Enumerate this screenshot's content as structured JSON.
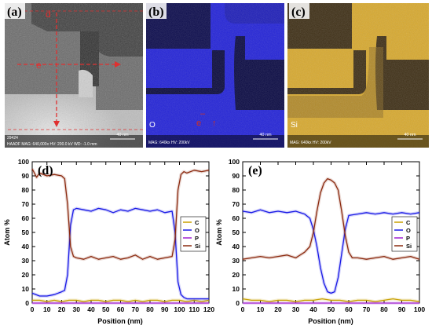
{
  "panels": {
    "a": {
      "label": "(a)",
      "caption": "HAADF  MAG: 640,000x  HV: 200.0 kV  WD: -1.0 mm",
      "id_text": "29424",
      "scale_label": "40 nm",
      "line_d_label": "d",
      "line_e_label": "e"
    },
    "b": {
      "label": "(b)",
      "element": "O",
      "caption": "MAG: 640kx  HV: 200kV",
      "scale_label": "40 nm",
      "color": "#1a1ae6"
    },
    "c": {
      "label": "(c)",
      "element": "Si",
      "caption": "MAG: 640kx  HV: 200kV",
      "scale_label": "40 nm",
      "color": "#d4a528"
    }
  },
  "chart_data": [
    {
      "type": "line",
      "panel_label": "(d)",
      "xlabel": "Position (nm)",
      "ylabel": "Atom %",
      "xlim": [
        0,
        120
      ],
      "ylim": [
        0,
        100
      ],
      "xticks": [
        0,
        10,
        20,
        30,
        40,
        50,
        60,
        70,
        80,
        90,
        100,
        110,
        120
      ],
      "yticks": [
        0,
        10,
        20,
        30,
        40,
        50,
        60,
        70,
        80,
        90,
        100
      ],
      "legend_position": "right",
      "series": [
        {
          "name": "C",
          "color": "#c8a000",
          "x": [
            0,
            5,
            10,
            15,
            20,
            25,
            30,
            35,
            40,
            45,
            50,
            55,
            60,
            65,
            70,
            75,
            80,
            85,
            90,
            95,
            100,
            105,
            110,
            115,
            120
          ],
          "y": [
            2,
            2,
            1,
            2,
            1,
            2,
            2,
            1,
            2,
            2,
            1,
            2,
            2,
            1,
            2,
            1,
            2,
            2,
            1,
            2,
            2,
            1,
            2,
            1,
            2
          ]
        },
        {
          "name": "O",
          "color": "#1a1ae6",
          "x": [
            0,
            5,
            10,
            15,
            20,
            22,
            24,
            26,
            28,
            30,
            35,
            40,
            45,
            50,
            55,
            60,
            65,
            70,
            75,
            80,
            85,
            90,
            95,
            97,
            99,
            101,
            103,
            105,
            110,
            115,
            120
          ],
          "y": [
            7,
            5,
            5,
            6,
            8,
            9,
            20,
            55,
            66,
            67,
            66,
            65,
            67,
            66,
            64,
            66,
            65,
            67,
            66,
            65,
            66,
            64,
            65,
            50,
            15,
            6,
            4,
            3,
            3,
            3,
            3
          ]
        },
        {
          "name": "P",
          "color": "#a020d0",
          "x": [
            0,
            10,
            20,
            30,
            40,
            50,
            60,
            70,
            80,
            90,
            100,
            110,
            120
          ],
          "y": [
            0,
            0,
            0,
            0,
            0,
            0,
            0,
            0,
            0,
            0,
            0,
            0,
            0
          ]
        },
        {
          "name": "Si",
          "color": "#8b2a10",
          "x": [
            0,
            3,
            5,
            10,
            15,
            20,
            22,
            24,
            26,
            28,
            30,
            35,
            40,
            45,
            50,
            55,
            60,
            65,
            70,
            75,
            80,
            85,
            90,
            95,
            97,
            99,
            101,
            103,
            105,
            110,
            115,
            120
          ],
          "y": [
            95,
            89,
            92,
            90,
            91,
            90,
            88,
            70,
            40,
            33,
            32,
            31,
            33,
            31,
            32,
            33,
            31,
            32,
            34,
            31,
            33,
            31,
            32,
            33,
            45,
            80,
            91,
            93,
            92,
            94,
            93,
            94
          ]
        }
      ]
    },
    {
      "type": "line",
      "panel_label": "(e)",
      "xlabel": "Position (nm)",
      "ylabel": "Atom %",
      "xlim": [
        0,
        100
      ],
      "ylim": [
        0,
        100
      ],
      "xticks": [
        0,
        10,
        20,
        30,
        40,
        50,
        60,
        70,
        80,
        90,
        100
      ],
      "yticks": [
        0,
        10,
        20,
        30,
        40,
        50,
        60,
        70,
        80,
        90,
        100
      ],
      "legend_position": "right",
      "series": [
        {
          "name": "C",
          "color": "#c8a000",
          "x": [
            0,
            5,
            10,
            15,
            20,
            25,
            30,
            35,
            40,
            45,
            50,
            55,
            60,
            65,
            70,
            75,
            80,
            85,
            90,
            95,
            100
          ],
          "y": [
            3,
            2,
            2,
            1,
            2,
            2,
            1,
            2,
            2,
            3,
            2,
            2,
            1,
            2,
            2,
            1,
            2,
            3,
            2,
            2,
            1
          ]
        },
        {
          "name": "O",
          "color": "#1a1ae6",
          "x": [
            0,
            5,
            10,
            15,
            20,
            25,
            30,
            35,
            38,
            40,
            42,
            44,
            46,
            48,
            50,
            52,
            54,
            56,
            58,
            60,
            65,
            70,
            75,
            80,
            85,
            90,
            95,
            100
          ],
          "y": [
            65,
            64,
            66,
            64,
            65,
            64,
            65,
            63,
            60,
            52,
            40,
            25,
            14,
            8,
            7,
            8,
            18,
            35,
            52,
            62,
            63,
            64,
            63,
            64,
            63,
            64,
            63,
            64
          ]
        },
        {
          "name": "P",
          "color": "#a020d0",
          "x": [
            0,
            10,
            20,
            30,
            40,
            50,
            60,
            70,
            80,
            90,
            100
          ],
          "y": [
            0,
            0,
            0,
            0,
            0,
            0,
            0,
            0,
            0,
            0,
            0
          ]
        },
        {
          "name": "Si",
          "color": "#8b2a10",
          "x": [
            0,
            5,
            10,
            15,
            20,
            25,
            30,
            35,
            38,
            40,
            42,
            44,
            46,
            48,
            50,
            52,
            54,
            56,
            58,
            60,
            62,
            65,
            70,
            75,
            80,
            85,
            90,
            95,
            100
          ],
          "y": [
            31,
            32,
            33,
            32,
            33,
            34,
            32,
            36,
            40,
            50,
            65,
            78,
            85,
            88,
            87,
            85,
            80,
            65,
            48,
            36,
            32,
            32,
            31,
            32,
            33,
            31,
            32,
            33,
            31
          ]
        }
      ]
    }
  ]
}
